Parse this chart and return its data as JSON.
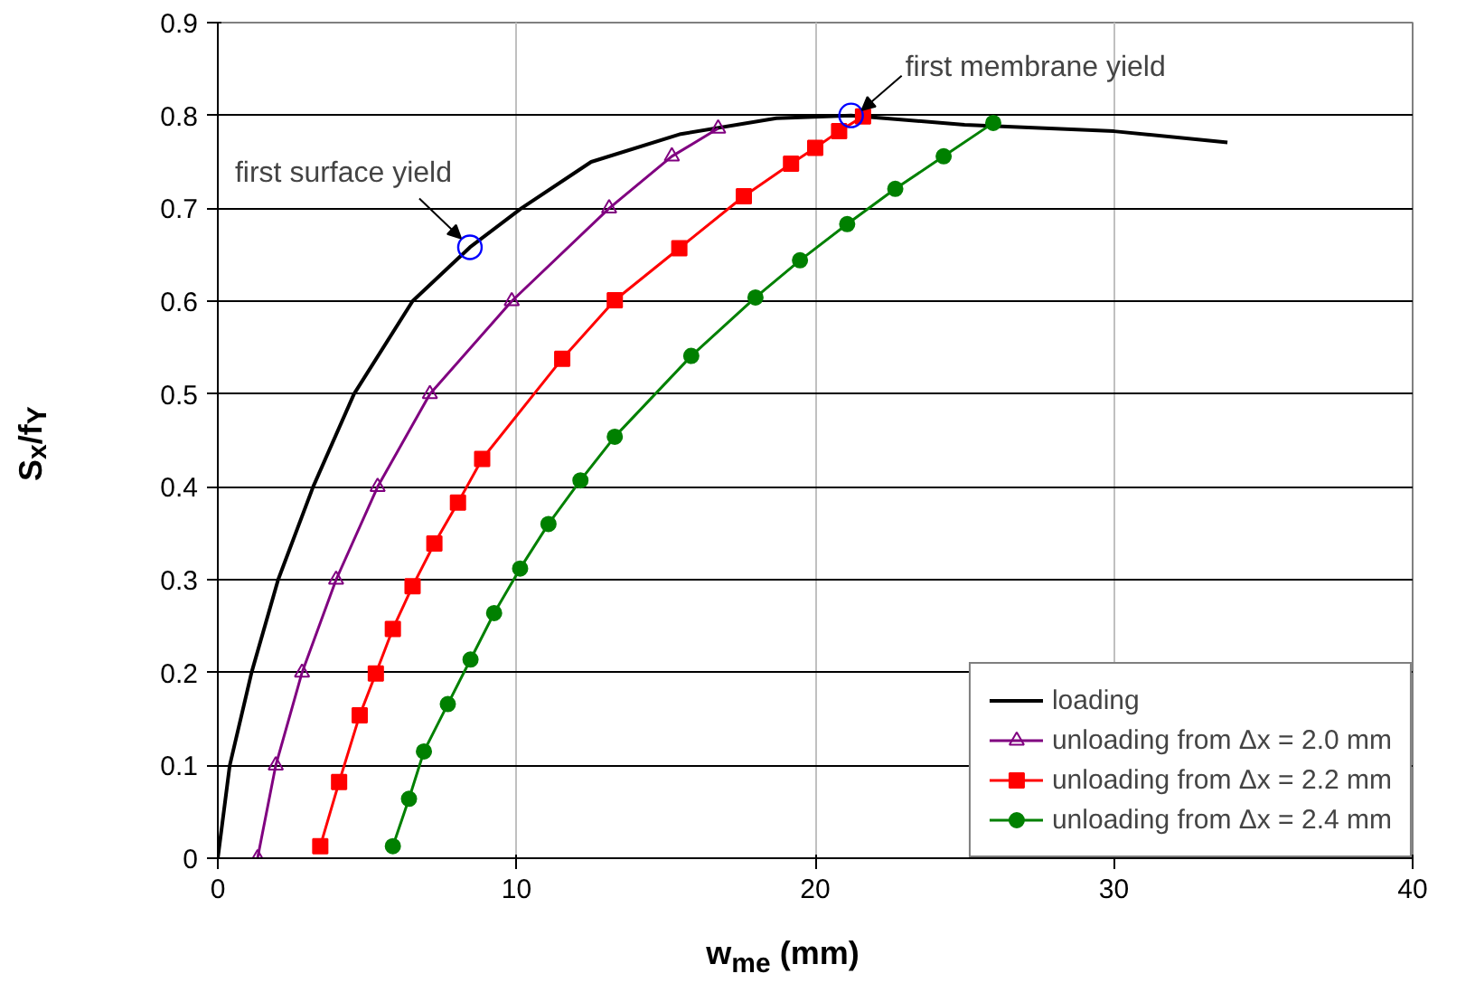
{
  "chart_data": {
    "type": "line",
    "xlabel": "w$_{me}$ (mm)",
    "ylabel": "S$_{x}$/f$_{Y}$",
    "xlim": [
      0,
      40
    ],
    "ylim": [
      0,
      0.9
    ],
    "xticks": [
      0,
      10,
      20,
      30,
      40
    ],
    "yticks": [
      0,
      {
        "value": 0.1,
        "label": "0.1"
      },
      {
        "value": 0.2,
        "label": "0.2"
      },
      {
        "value": 0.3,
        "label": "0.3"
      },
      {
        "value": 0.4,
        "label": "0.4"
      },
      {
        "value": 0.5,
        "label": "0.5"
      },
      {
        "value": 0.6,
        "label": "0.6"
      },
      {
        "value": 0.7,
        "label": "0.7"
      },
      {
        "value": 0.8,
        "label": "0.8"
      },
      {
        "value": 0.9,
        "label": "0.9"
      }
    ],
    "grid": true,
    "legend": "bottom right",
    "line_style": "solid",
    "series": [
      {
        "name": "loading",
        "color": "#000000",
        "marker": "none",
        "x": [
          0,
          0.4,
          1.13,
          2.02,
          3.19,
          4.56,
          6.52,
          8.44,
          10.16,
          12.5,
          15.5,
          18.7,
          21.2,
          25,
          30,
          33.8
        ],
        "values": [
          0,
          0.1,
          0.2,
          0.3,
          0.4,
          0.5,
          0.6,
          0.658,
          0.7,
          0.75,
          0.78,
          0.797,
          0.8,
          0.79,
          0.783,
          0.771
        ]
      },
      {
        "name": "unloading from Δx = 2.0 mm",
        "color": "#800080",
        "marker": "triangle",
        "x": [
          1.33,
          1.94,
          2.82,
          3.96,
          5.35,
          7.1,
          9.84,
          13.1,
          15.2,
          16.75
        ],
        "values": [
          0,
          0.1,
          0.2,
          0.3,
          0.4,
          0.5,
          0.6,
          0.7,
          0.756,
          0.786
        ]
      },
      {
        "name": "unloading from Δx = 2.2 mm",
        "color": "#ff0000",
        "marker": "square",
        "x": [
          3.43,
          4.06,
          4.75,
          5.29,
          5.86,
          6.52,
          7.25,
          8.04,
          8.85,
          11.53,
          13.29,
          15.45,
          17.61,
          19.19,
          20.0,
          20.8,
          21.6
        ],
        "values": [
          0.013,
          0.082,
          0.154,
          0.199,
          0.247,
          0.293,
          0.339,
          0.383,
          0.43,
          0.538,
          0.601,
          0.657,
          0.713,
          0.748,
          0.765,
          0.783,
          0.799
        ]
      },
      {
        "name": "unloading from Δx = 2.4 mm",
        "color": "#008000",
        "marker": "circle",
        "x": [
          5.86,
          6.4,
          6.9,
          7.7,
          8.46,
          9.25,
          10.12,
          11.07,
          12.14,
          13.29,
          15.85,
          18.0,
          19.49,
          21.07,
          22.68,
          24.3,
          25.96
        ],
        "values": [
          0.013,
          0.064,
          0.115,
          0.166,
          0.214,
          0.264,
          0.312,
          0.36,
          0.407,
          0.454,
          0.541,
          0.604,
          0.644,
          0.683,
          0.721,
          0.756,
          0.792
        ]
      },
      {
        "type": "scatter",
        "color": "#0000ff",
        "marker": "circle",
        "x": [
          8.44,
          21.2
        ],
        "values": [
          0.658,
          0.8
        ]
      }
    ],
    "annotations": [
      {
        "text": "first surface yield",
        "x": 8.44,
        "y": 0.658
      },
      {
        "text": "first membrane yield",
        "x": 21.2,
        "y": 0.8
      }
    ]
  }
}
